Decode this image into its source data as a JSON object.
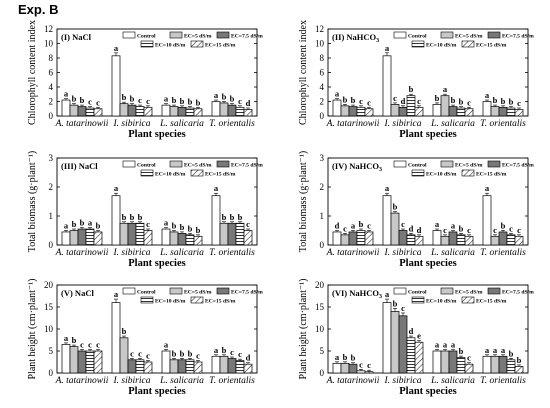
{
  "figure": {
    "label": "Exp. B"
  },
  "legend_entries": [
    {
      "name": "Control",
      "pattern": "white"
    },
    {
      "name": "EC=5 dS/m",
      "pattern": "lightgray"
    },
    {
      "name": "EC=7.5 dS/m",
      "pattern": "darkgray"
    },
    {
      "name": "EC=10 dS/m",
      "pattern": "hlines"
    },
    {
      "name": "EC=15 dS/m",
      "pattern": "diag"
    }
  ],
  "colors": {
    "lightgray": "#c8c8c8",
    "darkgray": "#787878",
    "stroke": "#000000"
  },
  "chart_data": [
    {
      "type": "bar",
      "panel_label": "(I) NaCl",
      "ylabel": "Chlorophyll content index",
      "xlabel": "Plant species",
      "categories": [
        "A. tatarinowii",
        "I. sibirica",
        "L. salicaria",
        "T. orientalis"
      ],
      "ylim": [
        0,
        12
      ],
      "yticks": [
        0,
        2,
        4,
        6,
        8,
        10,
        12
      ],
      "series": [
        {
          "name": "Control",
          "values": [
            2.2,
            8.3,
            1.5,
            2.0
          ],
          "letters": [
            "a",
            "a",
            "a",
            "a"
          ]
        },
        {
          "name": "EC=5 dS/m",
          "values": [
            1.5,
            1.7,
            1.3,
            1.8
          ],
          "letters": [
            "b",
            "b",
            "b",
            "b"
          ]
        },
        {
          "name": "EC=7.5 dS/m",
          "values": [
            1.3,
            1.5,
            1.2,
            1.5
          ],
          "letters": [
            "b",
            "b",
            "b",
            "b"
          ]
        },
        {
          "name": "EC=10 dS/m",
          "values": [
            1.1,
            1.3,
            1.1,
            1.2
          ],
          "letters": [
            "c",
            "c",
            "b",
            "c"
          ]
        },
        {
          "name": "EC=15 dS/m",
          "values": [
            1.0,
            1.2,
            1.0,
            0.9
          ],
          "letters": [
            "c",
            "c",
            "b",
            "d"
          ]
        }
      ]
    },
    {
      "type": "bar",
      "panel_label": "(II) NaHCO3",
      "ylabel": "Chlorophyll content index",
      "xlabel": "Plant species",
      "categories": [
        "A. tatarinowii",
        "I. sibirica",
        "L. salicaria",
        "T. orientalis"
      ],
      "ylim": [
        0,
        12
      ],
      "yticks": [
        0,
        2,
        4,
        6,
        8,
        10,
        12
      ],
      "series": [
        {
          "name": "Control",
          "values": [
            2.2,
            8.3,
            1.6,
            2.0
          ],
          "letters": [
            "a",
            "a",
            "b",
            "a"
          ]
        },
        {
          "name": "EC=5 dS/m",
          "values": [
            1.4,
            1.6,
            2.8,
            1.3
          ],
          "letters": [
            "b",
            "c",
            "a",
            "b"
          ]
        },
        {
          "name": "EC=7.5 dS/m",
          "values": [
            1.3,
            1.2,
            1.3,
            1.2
          ],
          "letters": [
            "b",
            "d",
            "b",
            "b"
          ]
        },
        {
          "name": "EC=10 dS/m",
          "values": [
            1.2,
            2.8,
            1.1,
            1.1
          ],
          "letters": [
            "c",
            "b",
            "b",
            "b"
          ]
        },
        {
          "name": "EC=15 dS/m",
          "values": [
            1.0,
            1.2,
            1.0,
            0.9
          ],
          "letters": [
            "c",
            "c",
            "c",
            "c"
          ]
        }
      ]
    },
    {
      "type": "bar",
      "panel_label": "(III) NaCl",
      "ylabel": "Total biomass (g·plant⁻¹)",
      "xlabel": "Plant species",
      "categories": [
        "A. tatarinowii",
        "I. sibirica",
        "L. salicaria",
        "T. orientalis"
      ],
      "ylim": [
        0,
        3
      ],
      "yticks": [
        0,
        1,
        2,
        3
      ],
      "series": [
        {
          "name": "Control",
          "values": [
            0.45,
            1.7,
            0.55,
            1.7
          ],
          "letters": [
            "a",
            "a",
            "a",
            "a"
          ]
        },
        {
          "name": "EC=5 dS/m",
          "values": [
            0.5,
            0.75,
            0.45,
            0.75
          ],
          "letters": [
            "b",
            "b",
            "b",
            "b"
          ]
        },
        {
          "name": "EC=7.5 dS/m",
          "values": [
            0.55,
            0.75,
            0.4,
            0.75
          ],
          "letters": [
            "b",
            "b",
            "b",
            "b"
          ]
        },
        {
          "name": "EC=10 dS/m",
          "values": [
            0.55,
            0.75,
            0.35,
            0.75
          ],
          "letters": [
            "a",
            "b",
            "b",
            "b"
          ]
        },
        {
          "name": "EC=15 dS/m",
          "values": [
            0.45,
            0.5,
            0.3,
            0.5
          ],
          "letters": [
            "b",
            "c",
            "b",
            "c"
          ]
        }
      ]
    },
    {
      "type": "bar",
      "panel_label": "(IV) NaHCO3",
      "ylabel": "Total biomass (g·plant⁻¹)",
      "xlabel": "Plant species",
      "categories": [
        "A. tatarinowii",
        "I. sibirica",
        "L. salicaria",
        "T. orientalis"
      ],
      "ylim": [
        0,
        3
      ],
      "yticks": [
        0,
        1,
        2,
        3
      ],
      "series": [
        {
          "name": "Control",
          "values": [
            0.45,
            1.7,
            0.5,
            1.7
          ],
          "letters": [
            "d",
            "a",
            "a",
            "a"
          ]
        },
        {
          "name": "EC=5 dS/m",
          "values": [
            0.35,
            1.1,
            0.3,
            0.3
          ],
          "letters": [
            "c",
            "b",
            "c",
            "c"
          ]
        },
        {
          "name": "EC=7.5 dS/m",
          "values": [
            0.45,
            0.5,
            0.45,
            0.45
          ],
          "letters": [
            "a",
            "c",
            "a",
            "b"
          ]
        },
        {
          "name": "EC=10 dS/m",
          "values": [
            0.5,
            0.35,
            0.35,
            0.35
          ],
          "letters": [
            "b",
            "d",
            "b",
            "c"
          ]
        },
        {
          "name": "EC=15 dS/m",
          "values": [
            0.45,
            0.3,
            0.3,
            0.3
          ],
          "letters": [
            "c",
            "d",
            "c",
            "c"
          ]
        }
      ]
    },
    {
      "type": "bar",
      "panel_label": "(V) NaCl",
      "ylabel": "Plant height (cm·plant⁻¹)",
      "xlabel": "Plant species",
      "categories": [
        "A. tatarinowii",
        "I. sibirica",
        "L. salicaria",
        "T. orientalis"
      ],
      "ylim": [
        0,
        20
      ],
      "yticks": [
        0,
        5,
        10,
        15,
        20
      ],
      "series": [
        {
          "name": "Control",
          "values": [
            6.5,
            16.0,
            5.0,
            3.8
          ],
          "letters": [
            "a",
            "a",
            "a",
            "a"
          ]
        },
        {
          "name": "EC=5 dS/m",
          "values": [
            6.0,
            8.0,
            3.0,
            3.8
          ],
          "letters": [
            "b",
            "b",
            "b",
            "b"
          ]
        },
        {
          "name": "EC=7.5 dS/m",
          "values": [
            5.0,
            3.0,
            3.0,
            3.3
          ],
          "letters": [
            "c",
            "c",
            "b",
            "c"
          ]
        },
        {
          "name": "EC=10 dS/m",
          "values": [
            5.0,
            3.0,
            3.0,
            2.8
          ],
          "letters": [
            "c",
            "c",
            "b",
            "c"
          ]
        },
        {
          "name": "EC=15 dS/m",
          "values": [
            5.0,
            2.5,
            2.5,
            2.0
          ],
          "letters": [
            "c",
            "c",
            "c",
            "d"
          ]
        }
      ]
    },
    {
      "type": "bar",
      "panel_label": "(VI) NaHCO3",
      "ylabel": "Plant height (cm·plant⁻¹)",
      "xlabel": "Plant species",
      "categories": [
        "A. tatarinowii",
        "I. sibirica",
        "L. salicaria",
        "T. orientalis"
      ],
      "ylim": [
        0,
        20
      ],
      "yticks": [
        0,
        5,
        10,
        15,
        20
      ],
      "series": [
        {
          "name": "Control",
          "values": [
            2.2,
            16.0,
            5.0,
            3.8
          ],
          "letters": [
            "a",
            "a",
            "a",
            "a"
          ]
        },
        {
          "name": "EC=5 dS/m",
          "values": [
            2.2,
            14.0,
            5.0,
            3.8
          ],
          "letters": [
            "b",
            "b",
            "a",
            "a"
          ]
        },
        {
          "name": "EC=7.5 dS/m",
          "values": [
            2.0,
            13.0,
            5.0,
            3.8
          ],
          "letters": [
            "b",
            "c",
            "a",
            "a"
          ]
        },
        {
          "name": "EC=10 dS/m",
          "values": [
            0.5,
            8.0,
            3.5,
            3.0
          ],
          "letters": [
            "c",
            "d",
            "b",
            "b"
          ]
        },
        {
          "name": "EC=15 dS/m",
          "values": [
            0.3,
            7.0,
            2.0,
            1.5
          ],
          "letters": [
            "c",
            "e",
            "c",
            "b"
          ]
        }
      ]
    }
  ]
}
